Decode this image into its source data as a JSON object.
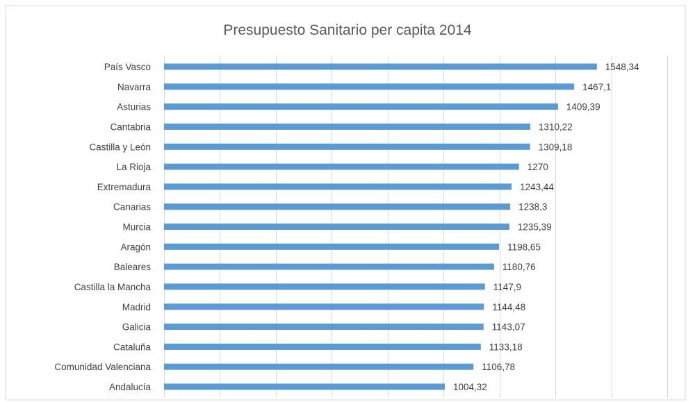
{
  "chart_data": {
    "type": "bar",
    "orientation": "horizontal",
    "title": "Presupuesto Sanitario per capita 2014",
    "xlabel": "",
    "ylabel": "",
    "xlim": [
      0,
      1800
    ],
    "grid": true,
    "legend": "none",
    "colors": {
      "bar": "#5B9BD5",
      "grid": "#D9D9D9",
      "border": "#D9D9D9"
    },
    "categories": [
      "País Vasco",
      "Navarra",
      "Asturias",
      "Cantabria",
      "Castilla y León",
      "La Rioja",
      "Extremadura",
      "Canarias",
      "Murcia",
      "Aragón",
      "Baleares",
      "Castilla la Mancha",
      "Madrid",
      "Galicia",
      "Cataluña",
      "Comunidad Valenciana",
      "Andalucía"
    ],
    "values": [
      1548.34,
      1467.1,
      1409.39,
      1310.22,
      1309.18,
      1270,
      1243.44,
      1238.3,
      1235.39,
      1198.65,
      1180.76,
      1147.9,
      1144.48,
      1143.07,
      1133.18,
      1106.78,
      1004.32
    ],
    "value_labels": [
      "1548,34",
      "1467,1",
      "1409,39",
      "1310,22",
      "1309,18",
      "1270",
      "1243,44",
      "1238,3",
      "1235,39",
      "1198,65",
      "1180,76",
      "1147,9",
      "1144,48",
      "1143,07",
      "1133,18",
      "1106,78",
      "1004,32"
    ]
  }
}
